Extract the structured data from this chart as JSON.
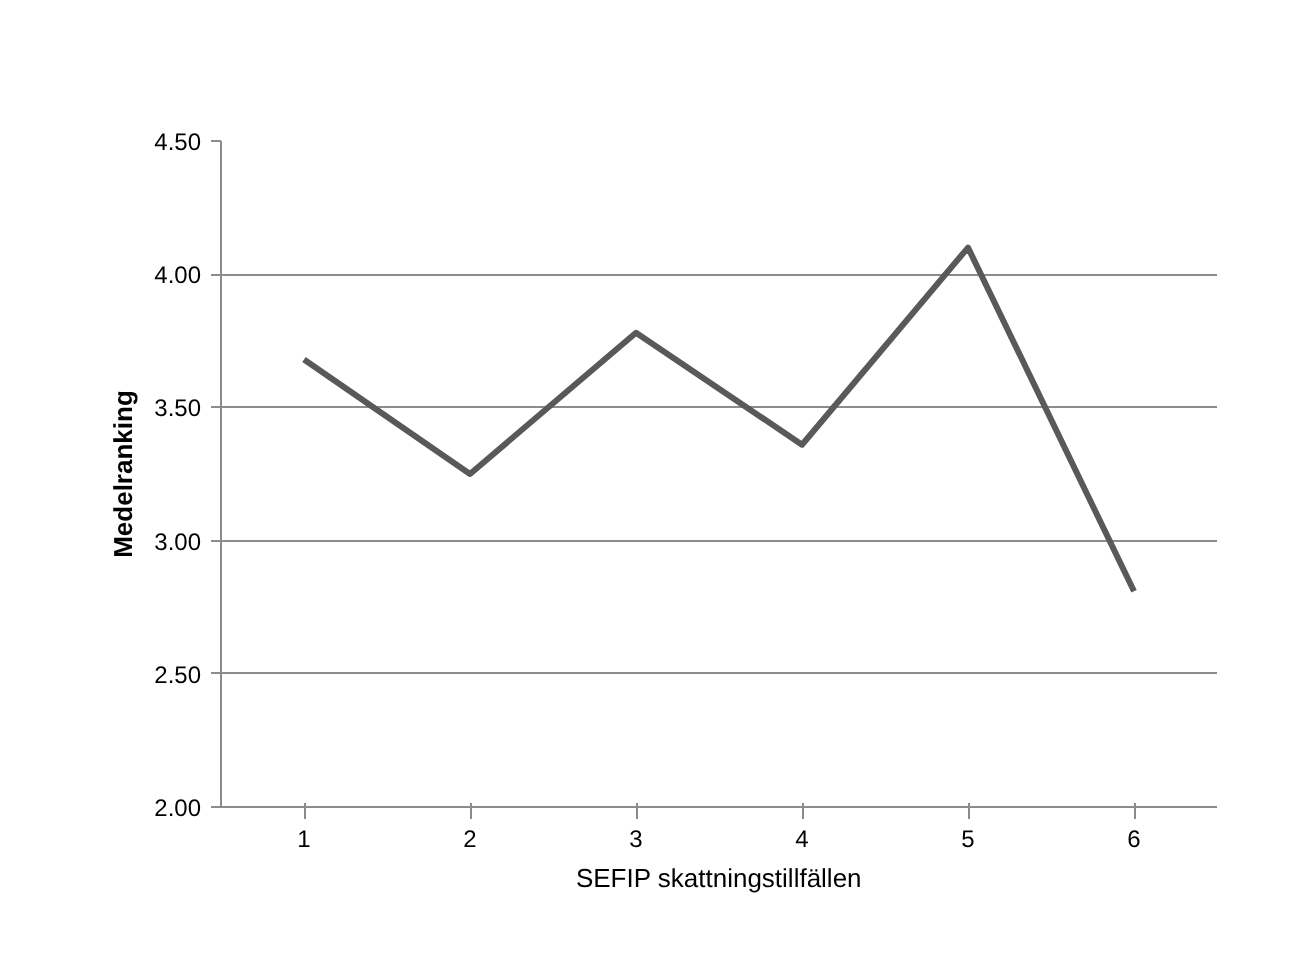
{
  "chart_data": {
    "type": "line",
    "xlabel": "SEFIP skattningstillfällen",
    "ylabel": "Medelranking",
    "categories": [
      "1",
      "2",
      "3",
      "4",
      "5",
      "6"
    ],
    "series": [
      {
        "color": "#595959",
        "values": [
          3.68,
          3.25,
          3.78,
          3.36,
          4.1,
          2.81
        ]
      }
    ],
    "ylim": [
      2.0,
      4.5
    ],
    "yticks": [
      {
        "value": 2.0,
        "label": "2.00"
      },
      {
        "value": 2.5,
        "label": "2.50"
      },
      {
        "value": 3.0,
        "label": "3.00"
      },
      {
        "value": 3.5,
        "label": "3.50"
      },
      {
        "value": 4.0,
        "label": "4.00"
      },
      {
        "value": 4.5,
        "label": "4.50"
      }
    ],
    "grid": "y",
    "marker": "none",
    "line_style": "solid"
  }
}
